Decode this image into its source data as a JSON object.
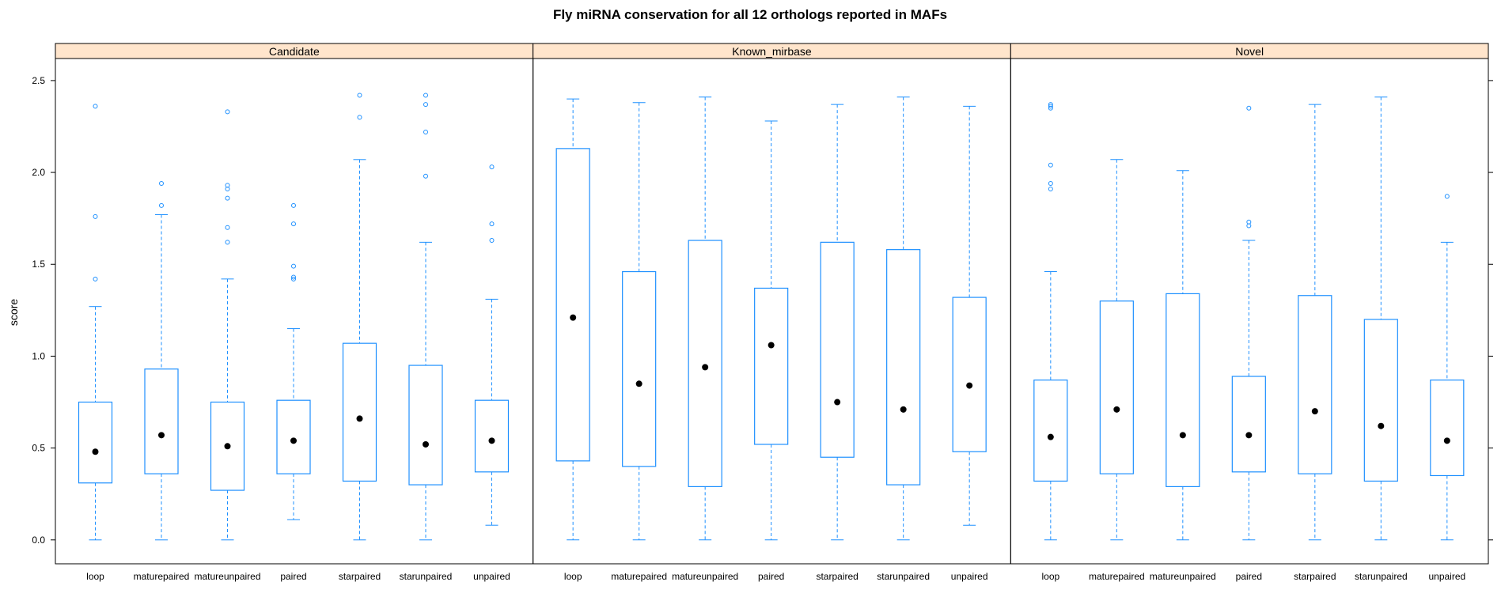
{
  "chart_data": {
    "type": "boxplot",
    "title": "Fly miRNA conservation for all 12 orthologs reported in MAFs",
    "xlabel": "",
    "ylabel": "score",
    "ylim": [
      -0.13,
      2.62
    ],
    "y_ticks": [
      "0.0",
      "0.5",
      "1.0",
      "1.5",
      "2.0",
      "2.5"
    ],
    "y_tick_values": [
      0,
      0.5,
      1.0,
      1.5,
      2.0,
      2.5
    ],
    "categories": [
      "loop",
      "maturepaired",
      "matureunpaired",
      "paired",
      "starpaired",
      "starunpaired",
      "unpaired"
    ],
    "colors": {
      "box": "#1e90ff",
      "median": "#000000",
      "strip_fill": "#ffe5cc",
      "frame": "#000000",
      "background": "#ffffff"
    },
    "panels": [
      {
        "name": "Candidate",
        "boxes": [
          {
            "category": "loop",
            "min": 0.0,
            "q1": 0.31,
            "median": 0.48,
            "q3": 0.75,
            "max": 1.27,
            "outliers": [
              1.42,
              1.76,
              2.36
            ]
          },
          {
            "category": "maturepaired",
            "min": 0.0,
            "q1": 0.36,
            "median": 0.57,
            "q3": 0.93,
            "max": 1.77,
            "outliers": [
              1.82,
              1.94
            ]
          },
          {
            "category": "matureunpaired",
            "min": 0.0,
            "q1": 0.27,
            "median": 0.51,
            "q3": 0.75,
            "max": 1.42,
            "outliers": [
              1.62,
              1.7,
              1.86,
              1.91,
              1.93,
              2.33
            ]
          },
          {
            "category": "paired",
            "min": 0.11,
            "q1": 0.36,
            "median": 0.54,
            "q3": 0.76,
            "max": 1.15,
            "outliers": [
              1.42,
              1.43,
              1.49,
              1.72,
              1.82
            ]
          },
          {
            "category": "starpaired",
            "min": 0.0,
            "q1": 0.32,
            "median": 0.66,
            "q3": 1.07,
            "max": 2.07,
            "outliers": [
              2.3,
              2.42
            ]
          },
          {
            "category": "starunpaired",
            "min": 0.0,
            "q1": 0.3,
            "median": 0.52,
            "q3": 0.95,
            "max": 1.62,
            "outliers": [
              1.98,
              2.22,
              2.37,
              2.42
            ]
          },
          {
            "category": "unpaired",
            "min": 0.08,
            "q1": 0.37,
            "median": 0.54,
            "q3": 0.76,
            "max": 1.31,
            "outliers": [
              1.63,
              1.72,
              2.03
            ]
          }
        ]
      },
      {
        "name": "Known_mirbase",
        "boxes": [
          {
            "category": "loop",
            "min": 0.0,
            "q1": 0.43,
            "median": 1.21,
            "q3": 2.13,
            "max": 2.4,
            "outliers": []
          },
          {
            "category": "maturepaired",
            "min": 0.0,
            "q1": 0.4,
            "median": 0.85,
            "q3": 1.46,
            "max": 2.38,
            "outliers": []
          },
          {
            "category": "matureunpaired",
            "min": 0.0,
            "q1": 0.29,
            "median": 0.94,
            "q3": 1.63,
            "max": 2.41,
            "outliers": []
          },
          {
            "category": "paired",
            "min": 0.0,
            "q1": 0.52,
            "median": 1.06,
            "q3": 1.37,
            "max": 2.28,
            "outliers": []
          },
          {
            "category": "starpaired",
            "min": 0.0,
            "q1": 0.45,
            "median": 0.75,
            "q3": 1.62,
            "max": 2.37,
            "outliers": []
          },
          {
            "category": "starunpaired",
            "min": 0.0,
            "q1": 0.3,
            "median": 0.71,
            "q3": 1.58,
            "max": 2.41,
            "outliers": []
          },
          {
            "category": "unpaired",
            "min": 0.08,
            "q1": 0.48,
            "median": 0.84,
            "q3": 1.32,
            "max": 2.36,
            "outliers": []
          }
        ]
      },
      {
        "name": "Novel",
        "boxes": [
          {
            "category": "loop",
            "min": 0.0,
            "q1": 0.32,
            "median": 0.56,
            "q3": 0.87,
            "max": 1.46,
            "outliers": [
              1.91,
              1.94,
              2.04,
              2.35,
              2.36,
              2.37
            ]
          },
          {
            "category": "maturepaired",
            "min": 0.0,
            "q1": 0.36,
            "median": 0.71,
            "q3": 1.3,
            "max": 2.07,
            "outliers": []
          },
          {
            "category": "matureunpaired",
            "min": 0.0,
            "q1": 0.29,
            "median": 0.57,
            "q3": 1.34,
            "max": 2.01,
            "outliers": []
          },
          {
            "category": "paired",
            "min": 0.0,
            "q1": 0.37,
            "median": 0.57,
            "q3": 0.89,
            "max": 1.63,
            "outliers": [
              1.71,
              1.73,
              2.35
            ]
          },
          {
            "category": "starpaired",
            "min": 0.0,
            "q1": 0.36,
            "median": 0.7,
            "q3": 1.33,
            "max": 2.37,
            "outliers": []
          },
          {
            "category": "starunpaired",
            "min": 0.0,
            "q1": 0.32,
            "median": 0.62,
            "q3": 1.2,
            "max": 2.41,
            "outliers": []
          },
          {
            "category": "unpaired",
            "min": 0.0,
            "q1": 0.35,
            "median": 0.54,
            "q3": 0.87,
            "max": 1.62,
            "outliers": [
              1.87
            ]
          }
        ]
      }
    ]
  }
}
